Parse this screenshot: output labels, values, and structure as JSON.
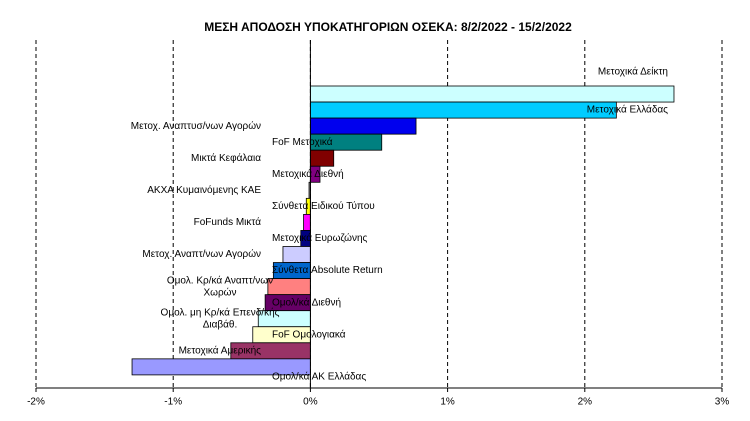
{
  "chart_data": {
    "type": "bar",
    "orientation": "horizontal",
    "title": "ΜΕΣΗ ΑΠΟΔΟΣΗ ΥΠΟΚΑΤΗΓΟΡΙΩΝ  ΟΣΕΚΑ: 8/2/2022 - 15/2/2022",
    "categories": [
      "Μετοχικά Δείκτη",
      "Μετοχικά Ελλάδας",
      "Μετοχ. Αναπτυσ/νων Αγορών",
      "FoF Μετοχικά",
      "Μικτά Κεφάλαια",
      "Μετοχικά Διεθνή",
      "ΑΚΧΑ Κυμαινόμενης ΚΑΕ",
      "Σύνθετα Ειδικού Τύπου",
      "FoFunds Μικτά",
      "Μετοχικά Ευρωζώνης",
      "Μετοχ. Αναπτ/νων Αγορών",
      "Σύνθετα Absolute Return",
      "Ομολ. Κρ/κά Αναπτ/νων\nΧωρών",
      "Ομολ/κά Διεθνή",
      "Ομολ. μη Κρ/κά Επενδ/κής\nΔιαβάθ.",
      "FoF Ομολογιακά",
      "Μετοχικά Αμερικής",
      "Ομολ/κά ΑΚ Ελλάδας"
    ],
    "values": [
      2.65,
      2.23,
      0.77,
      0.52,
      0.17,
      0.07,
      -0.01,
      -0.03,
      -0.05,
      -0.07,
      -0.2,
      -0.27,
      -0.31,
      -0.33,
      -0.38,
      -0.42,
      -0.58,
      -1.3
    ],
    "colors": [
      "#ccffff",
      "#00ccff",
      "#0000ee",
      "#008080",
      "#800000",
      "#800080",
      "#999999",
      "#ffff00",
      "#ff00ff",
      "#000080",
      "#ccccff",
      "#0066cc",
      "#ff8080",
      "#660066",
      "#ccffff",
      "#ffffcc",
      "#993366",
      "#9999ff"
    ],
    "xlim": [
      -2,
      3
    ],
    "xticks": [
      {
        "value": -2,
        "label": "-2%"
      },
      {
        "value": -1,
        "label": "-1%"
      },
      {
        "value": 0,
        "label": "0%"
      },
      {
        "value": 1,
        "label": "1%"
      },
      {
        "value": 2,
        "label": "2%"
      },
      {
        "value": 3,
        "label": "3%"
      }
    ],
    "grid": true
  }
}
